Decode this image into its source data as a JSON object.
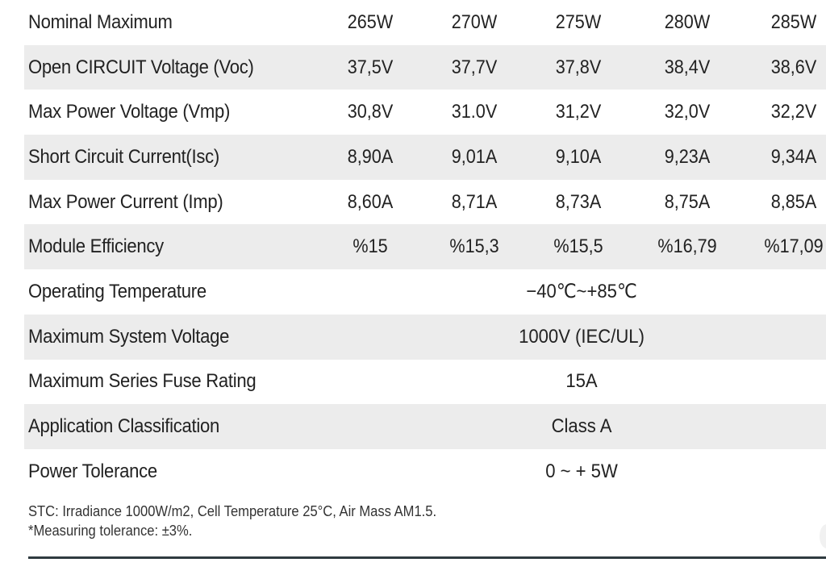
{
  "table": {
    "rows": [
      {
        "label": "Nominal Maximum",
        "values": [
          "265W",
          "270W",
          "275W",
          "280W",
          "285W"
        ],
        "shaded": false
      },
      {
        "label": "Open CIRCUIT Voltage (Voc)",
        "values": [
          "37,5V",
          "37,7V",
          "37,8V",
          "38,4V",
          "38,6V"
        ],
        "shaded": true
      },
      {
        "label": "Max Power Voltage (Vmp)",
        "values": [
          "30,8V",
          "31.0V",
          "31,2V",
          "32,0V",
          "32,2V"
        ],
        "shaded": false
      },
      {
        "label": "Short Circuit Current(Isc)",
        "values": [
          "8,90A",
          "9,01A",
          "9,10A",
          "9,23A",
          "9,34A"
        ],
        "shaded": true
      },
      {
        "label": "Max Power Current (Imp)",
        "values": [
          "8,60A",
          "8,71A",
          "8,73A",
          "8,75A",
          "8,85A"
        ],
        "shaded": false
      },
      {
        "label": "Module Efficiency",
        "values": [
          "%15",
          "%15,3",
          "%15,5",
          "%16,79",
          "%17,09"
        ],
        "shaded": true
      },
      {
        "label": "Operating Temperature",
        "span_value": "−40℃~+85℃",
        "shaded": false
      },
      {
        "label": "Maximum System Voltage",
        "span_value": "1000V (IEC/UL)",
        "shaded": true
      },
      {
        "label": "Maximum Series Fuse Rating",
        "span_value": "15A",
        "shaded": false
      },
      {
        "label": "Application Classification",
        "span_value": "Class A",
        "shaded": true
      },
      {
        "label": "Power Tolerance",
        "span_value": "0 ~ + 5W",
        "shaded": false
      }
    ]
  },
  "footnote": {
    "line1": "STC: Irradiance 1000W/m2, Cell Temperature 25°C, Air Mass AM1.5.",
    "line2": "*Measuring tolerance: ±3%."
  }
}
